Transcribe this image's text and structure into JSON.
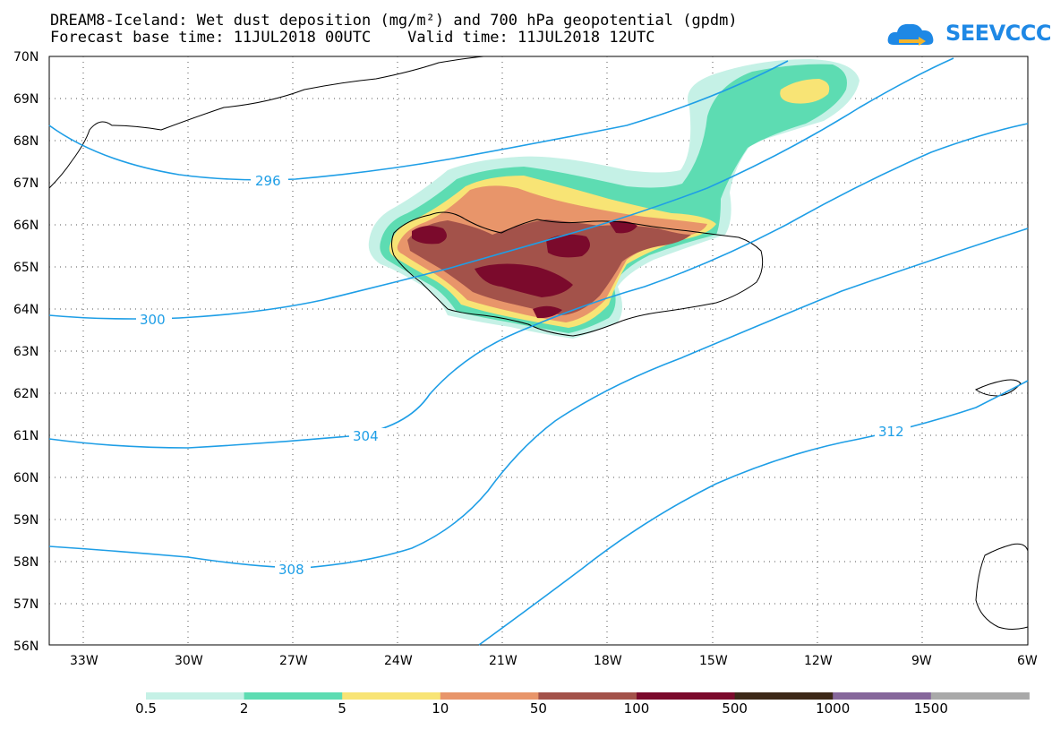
{
  "title": {
    "line1": "DREAM8-Iceland: Wet dust deposition (mg/m²) and 700 hPa geopotential (gpdm)",
    "line2": "Forecast base time: 11JUL2018 00UTC    Valid time: 11JUL2018 12UTC"
  },
  "logo": {
    "text": "SEEVCCC",
    "icon": "cloud-icon",
    "color": "#1e88e5"
  },
  "map": {
    "lat_labels": [
      "70N",
      "69N",
      "68N",
      "67N",
      "66N",
      "65N",
      "64N",
      "63N",
      "62N",
      "61N",
      "60N",
      "59N",
      "58N",
      "57N",
      "56N"
    ],
    "lon_labels": [
      "33W",
      "30W",
      "27W",
      "24W",
      "21W",
      "18W",
      "15W",
      "12W",
      "9W",
      "6W"
    ],
    "contour_labels": [
      "296",
      "300",
      "304",
      "308",
      "312"
    ],
    "contour_color": "#1e9ee6"
  },
  "colorbar": {
    "labels": [
      "0.5",
      "2",
      "5",
      "10",
      "50",
      "100",
      "500",
      "1000",
      "1500"
    ],
    "colors": [
      "#c5f1e6",
      "#5ddcb2",
      "#f8e475",
      "#e8956a",
      "#a3524a",
      "#7b0a2c",
      "#3d2818",
      "#86679b",
      "#a9a9a9"
    ]
  }
}
